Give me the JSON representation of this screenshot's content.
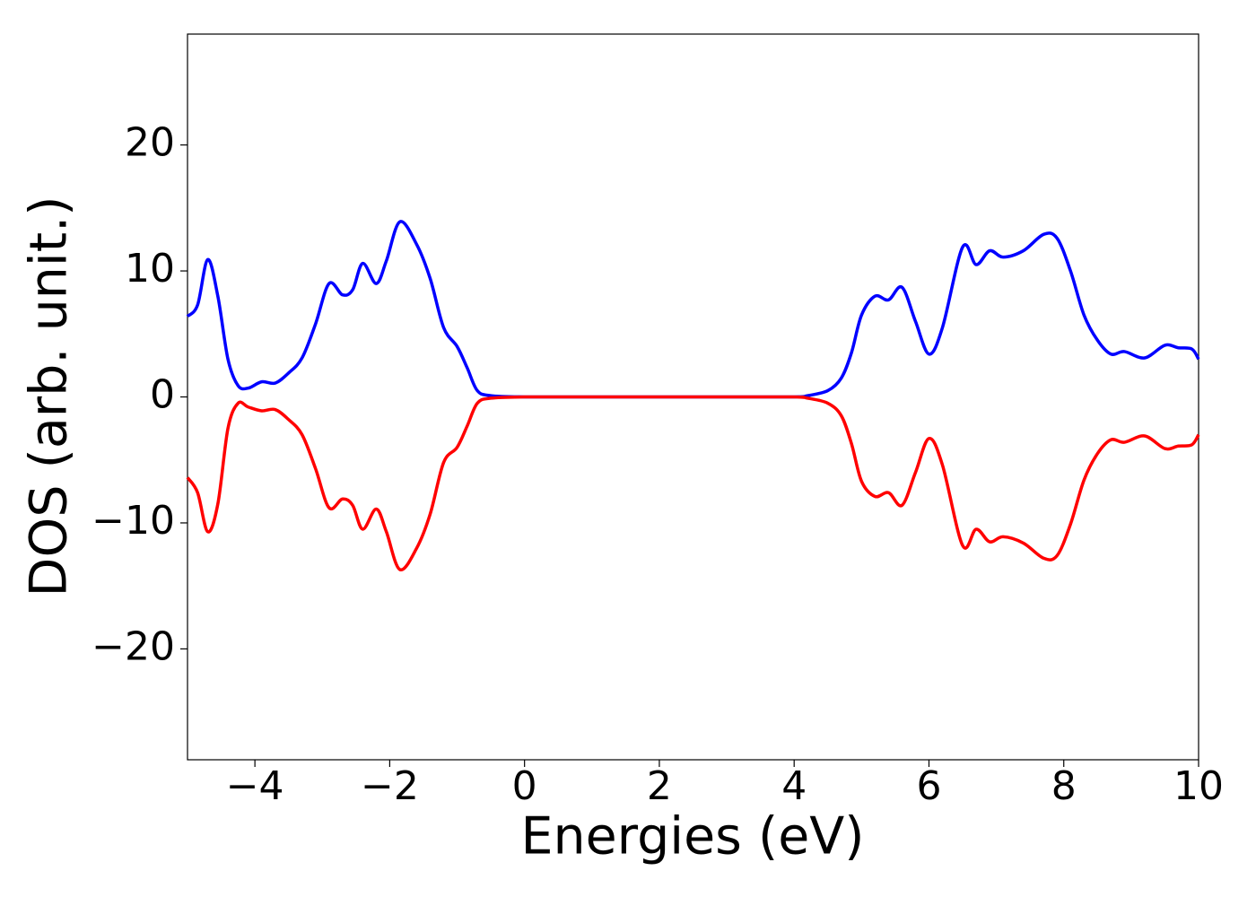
{
  "chart_data": {
    "type": "line",
    "xlabel": "Energies (eV)",
    "ylabel": "DOS (arb. unit.)",
    "x": [
      -5,
      -4.85,
      -4.7,
      -4.55,
      -4.4,
      -4.25,
      -4.1,
      -3.9,
      -3.7,
      -3.5,
      -3.3,
      -3.1,
      -2.9,
      -2.7,
      -2.55,
      -2.4,
      -2.2,
      -2.05,
      -1.85,
      -1.6,
      -1.4,
      -1.2,
      -1.0,
      -0.85,
      -0.7,
      -0.5,
      0,
      1,
      2,
      3,
      4,
      4.2,
      4.5,
      4.7,
      4.85,
      5.0,
      5.2,
      5.4,
      5.6,
      5.8,
      6.0,
      6.2,
      6.5,
      6.7,
      6.9,
      7.1,
      7.4,
      7.7,
      7.9,
      8.1,
      8.3,
      8.5,
      8.7,
      8.9,
      9.2,
      9.5,
      9.7,
      9.9,
      10
    ],
    "series": [
      {
        "color": "#0000ff",
        "values": [
          6.4,
          7.3,
          10.9,
          8,
          3,
          0.9,
          0.7,
          1.2,
          1.1,
          1.9,
          3.1,
          5.8,
          9.0,
          8.1,
          8.5,
          10.6,
          9.0,
          10.8,
          13.9,
          12.1,
          9.4,
          5.5,
          4.0,
          2.3,
          0.5,
          0.1,
          0,
          0,
          0,
          0,
          0,
          0.1,
          0.5,
          1.5,
          3.5,
          6.5,
          8.0,
          7.7,
          8.7,
          6.0,
          3.4,
          5.5,
          11.9,
          10.5,
          11.6,
          11.1,
          11.6,
          12.9,
          12.6,
          10.0,
          6.5,
          4.5,
          3.4,
          3.6,
          3.1,
          4.1,
          3.9,
          3.8,
          3.0
        ]
      },
      {
        "color": "#ff0000",
        "values": [
          -6.4,
          -7.6,
          -10.7,
          -8.5,
          -2.5,
          -0.5,
          -0.8,
          -1.1,
          -1.0,
          -1.8,
          -3.0,
          -5.7,
          -8.8,
          -8.1,
          -8.6,
          -10.5,
          -8.9,
          -10.7,
          -13.7,
          -12.0,
          -9.3,
          -5.2,
          -4.0,
          -2.3,
          -0.5,
          -0.1,
          0,
          0,
          0,
          0,
          0,
          -0.1,
          -0.5,
          -1.5,
          -3.7,
          -6.7,
          -7.9,
          -7.6,
          -8.6,
          -6.0,
          -3.3,
          -5.4,
          -11.8,
          -10.5,
          -11.5,
          -11.1,
          -11.6,
          -12.8,
          -12.6,
          -10.1,
          -6.6,
          -4.5,
          -3.4,
          -3.6,
          -3.1,
          -4.1,
          -3.9,
          -3.8,
          -3.0
        ]
      }
    ],
    "xlim": [
      -5,
      10
    ],
    "xticks": [
      {
        "value": -4,
        "label": "−4"
      },
      {
        "value": -2,
        "label": "−2"
      },
      0,
      2,
      4,
      6,
      8,
      10
    ],
    "ylim": [
      -28.8,
      28.8
    ],
    "yticks": [
      {
        "value": -20,
        "label": "−20"
      },
      {
        "value": -10,
        "label": "−10"
      },
      0,
      10,
      20
    ]
  }
}
